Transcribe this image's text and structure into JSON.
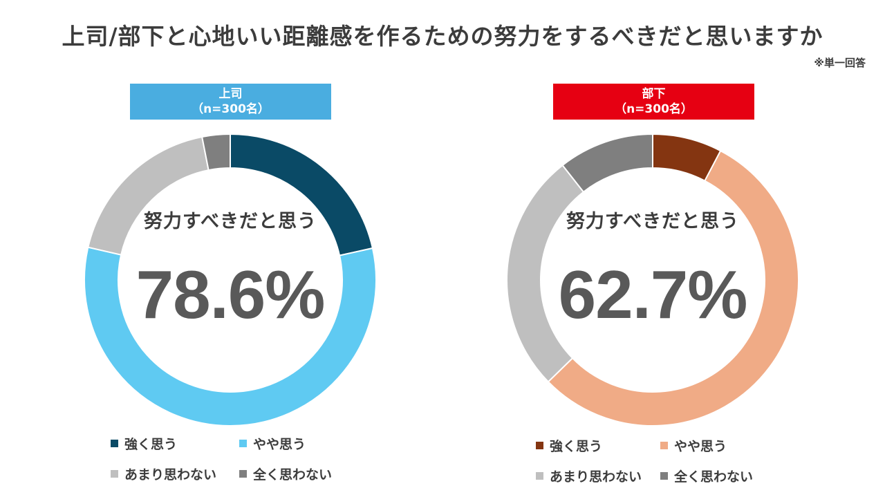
{
  "title": "上司/部下と心地いい距離感を作るための努力をするべきだと思いますか",
  "note": "※単一回答",
  "groups": {
    "left": {
      "header_line1": "上司",
      "header_line2": "（n=300名）",
      "header_color": "#4aade0",
      "center_label": "努力すべきだと思う",
      "center_value": "78.6%"
    },
    "right": {
      "header_line1": "部下",
      "header_line2": "（n=300名）",
      "header_color": "#e60012",
      "center_label": "努力すべきだと思う",
      "center_value": "62.7%"
    }
  },
  "legend_left": [
    {
      "label": "強く思う",
      "color": "#0a4a66"
    },
    {
      "label": "やや思う",
      "color": "#5fcaf2"
    },
    {
      "label": "あまり思わない",
      "color": "#bfbfbf"
    },
    {
      "label": "全く思わない",
      "color": "#7f7f7f"
    }
  ],
  "legend_right": [
    {
      "label": "強く思う",
      "color": "#843511"
    },
    {
      "label": "やや思う",
      "color": "#f0ab86"
    },
    {
      "label": "あまり思わない",
      "color": "#bfbfbf"
    },
    {
      "label": "全く思わない",
      "color": "#7f7f7f"
    }
  ],
  "chart_data": [
    {
      "type": "pie",
      "title": "上司（n=300名）",
      "categories": [
        "強く思う",
        "やや思う",
        "あまり思わない",
        "全く思わない"
      ],
      "values": [
        21.5,
        57.1,
        18.3,
        3.1
      ],
      "colors": [
        "#0a4a66",
        "#5fcaf2",
        "#bfbfbf",
        "#7f7f7f"
      ],
      "annotation": "努力すべきだと思う 78.6%"
    },
    {
      "type": "pie",
      "title": "部下（n=300名）",
      "categories": [
        "強く思う",
        "やや思う",
        "あまり思わない",
        "全く思わない"
      ],
      "values": [
        7.7,
        55.0,
        26.7,
        10.6
      ],
      "colors": [
        "#843511",
        "#f0ab86",
        "#bfbfbf",
        "#7f7f7f"
      ],
      "annotation": "努力すべきだと思う 62.7%"
    }
  ]
}
